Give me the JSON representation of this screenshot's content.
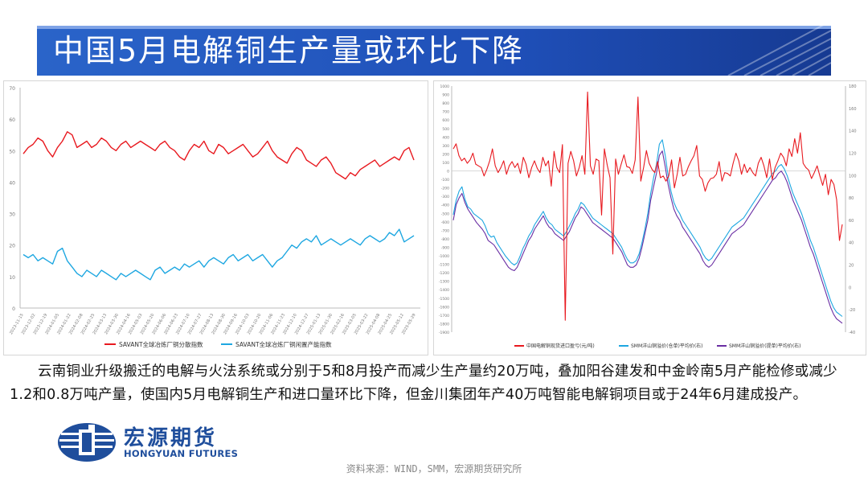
{
  "title": "中国5月电解铜生产量或环比下降",
  "body_text": "云南铜业升级搬迁的电解与火法系统或分别于5和8月投产而减少生产量约20万吨，叠加阳谷建发和中金岭南5月产能检修或减少1.2和0.8万吨产量，使国内5月电解铜生产和进口量环比下降，但金川集团年产40万吨智能电解铜项目或于24年6月建成投产。",
  "source": "资料来源：WIND，SMM，宏源期货研究所",
  "logo": {
    "cn": "宏源期货",
    "en": "HONGYUAN FUTURES"
  },
  "colors": {
    "title_bg": "#1f4fb8",
    "red": "#e8191f",
    "cyan": "#1ea7e1",
    "purple": "#6a2ea3"
  },
  "chart_data": [
    {
      "type": "line",
      "ylim": [
        0,
        70
      ],
      "yticks": [
        "0",
        "10",
        "20",
        "30",
        "40",
        "50",
        "60",
        "70"
      ],
      "x": [
        "2023-11-15",
        "2023-11-22",
        "2023-11-29",
        "2023-12-06",
        "2023-12-13",
        "2023-12-20",
        "2023-12-27",
        "2024-01-03",
        "2024-01-10",
        "2024-01-17",
        "2024-01-24",
        "2024-01-31",
        "2024-02-07",
        "2024-02-14",
        "2024-02-21",
        "2024-02-28",
        "2024-03-06",
        "2024-03-13",
        "2024-03-20",
        "2024-03-27",
        "2024-04-03",
        "2024-04-10",
        "2024-04-17",
        "2024-04-24",
        "2024-05-01",
        "2024-05-08",
        "2024-05-15",
        "2024-05-22",
        "2024-05-29",
        "2024-06-05",
        "2024-06-12",
        "2024-06-19",
        "2024-06-26",
        "2024-07-03",
        "2024-07-10",
        "2024-07-17",
        "2024-07-24",
        "2024-07-31",
        "2024-08-07",
        "2024-08-14",
        "2024-08-21",
        "2024-08-28",
        "2024-09-04",
        "2024-09-11",
        "2024-09-18",
        "2024-09-25",
        "2024-10-02",
        "2024-10-09",
        "2024-10-16",
        "2024-10-23",
        "2024-10-30",
        "2024-11-06",
        "2024-11-13",
        "2024-11-20",
        "2024-11-27",
        "2024-12-04",
        "2024-12-11",
        "2024-12-18",
        "2024-12-25",
        "2025-01-01",
        "2025-01-08",
        "2025-01-15",
        "2025-01-22",
        "2025-01-29",
        "2025-02-05",
        "2025-02-12",
        "2025-02-19",
        "2025-02-26",
        "2025-03-05",
        "2025-03-12",
        "2025-03-19",
        "2025-03-26",
        "2025-04-02",
        "2025-04-09",
        "2025-04-16",
        "2025-04-23",
        "2025-04-30",
        "2025-05-07",
        "2025-05-14",
        "2025-05-21",
        "2025-05-28"
      ],
      "xticks_shown": [
        "2023-11-15",
        "2023-12-02",
        "2023-12-19",
        "2024-01-05",
        "2024-01-22",
        "2024-02-08",
        "2024-02-25",
        "2024-03-13",
        "2024-03-30",
        "2024-04-16",
        "2024-05-03",
        "2024-05-20",
        "2024-06-06",
        "2024-06-23",
        "2024-07-10",
        "2024-07-27",
        "2024-08-13",
        "2024-08-30",
        "2024-09-16",
        "2024-10-03",
        "2024-10-20",
        "2024-11-06",
        "2024-11-23",
        "2024-12-10",
        "2024-12-27",
        "2025-01-13",
        "2025-01-30",
        "2025-02-16",
        "2025-03-05",
        "2025-03-22",
        "2025-04-08",
        "2025-04-25",
        "2025-05-12",
        "2025-05-29"
      ],
      "series": [
        {
          "name": "SAVANT全球冶炼厂铜分散指数",
          "color": "#e8191f",
          "values": [
            49,
            51,
            52,
            54,
            53,
            50,
            48,
            51,
            53,
            56,
            55,
            51,
            52,
            53,
            51,
            52,
            54,
            53,
            51,
            50,
            52,
            53,
            51,
            52,
            53,
            52,
            51,
            50,
            52,
            53,
            51,
            50,
            48,
            47,
            50,
            52,
            51,
            53,
            50,
            49,
            52,
            51,
            49,
            50,
            51,
            52,
            50,
            48,
            49,
            51,
            53,
            50,
            48,
            47,
            46,
            49,
            51,
            50,
            47,
            46,
            45,
            47,
            48,
            46,
            43,
            42,
            41,
            43,
            42,
            44,
            45,
            46,
            47,
            45,
            46,
            47,
            48,
            47,
            50,
            51,
            47
          ]
        },
        {
          "name": "SAVANT全球冶炼厂铜闲置产能指数",
          "color": "#1ea7e1",
          "values": [
            17,
            16,
            17,
            15,
            16,
            15,
            14,
            18,
            19,
            15,
            13,
            11,
            10,
            12,
            11,
            10,
            12,
            11,
            10,
            9,
            11,
            10,
            11,
            12,
            11,
            10,
            9,
            12,
            13,
            11,
            12,
            13,
            12,
            14,
            13,
            14,
            15,
            13,
            15,
            16,
            15,
            14,
            16,
            17,
            15,
            16,
            17,
            15,
            16,
            17,
            15,
            13,
            15,
            16,
            18,
            20,
            19,
            21,
            22,
            21,
            23,
            20,
            21,
            22,
            21,
            20,
            21,
            22,
            21,
            20,
            22,
            23,
            22,
            21,
            22,
            24,
            23,
            25,
            21,
            22,
            23
          ]
        }
      ]
    },
    {
      "type": "line",
      "ylim": [
        -1900,
        1000
      ],
      "yticks_left": [
        "-1900",
        "-1800",
        "-1700",
        "-1600",
        "-1500",
        "-1400",
        "-1300",
        "-1200",
        "-1100",
        "-1000",
        "-900",
        "-800",
        "-700",
        "-600",
        "-500",
        "-400",
        "-300",
        "-200",
        "-100",
        "0",
        "100",
        "200",
        "300",
        "400",
        "500",
        "600",
        "700",
        "800",
        "900",
        "1000"
      ],
      "ylim_right": [
        -40,
        180
      ],
      "yticks_right": [
        "-40",
        "-20",
        "0",
        "20",
        "40",
        "60",
        "80",
        "100",
        "120",
        "140",
        "160",
        "180"
      ],
      "series": [
        {
          "name": "中国电解铜现货进口盈亏(元/吨)",
          "color": "#e8191f",
          "axis": "left",
          "values": [
            260,
            320,
            180,
            120,
            150,
            90,
            130,
            210,
            80,
            60,
            40,
            -60,
            20,
            120,
            260,
            60,
            -20,
            40,
            120,
            -40,
            60,
            110,
            40,
            90,
            -30,
            160,
            80,
            -80,
            40,
            120,
            30,
            -20,
            160,
            60,
            120,
            -180,
            230,
            40,
            -20,
            310,
            -1760,
            90,
            230,
            120,
            -60,
            40,
            180,
            -40,
            930,
            60,
            -40,
            140,
            120,
            -520,
            260,
            70,
            -80,
            -980,
            140,
            -40,
            80,
            190,
            50,
            40,
            -30,
            130,
            870,
            -120,
            40,
            240,
            90,
            20,
            -20,
            110,
            -80,
            -60,
            -120,
            -60,
            130,
            -200,
            -40,
            160,
            -60,
            -40,
            50,
            120,
            180,
            300,
            -60,
            -100,
            -240,
            -140,
            -90,
            -80,
            -40,
            110,
            -120,
            -20,
            -30,
            -60,
            90,
            210,
            120,
            -40,
            80,
            -20,
            40,
            -20,
            -60,
            90,
            160,
            60,
            -80,
            140,
            -100,
            40,
            120,
            210,
            160,
            60,
            260,
            170,
            380,
            210,
            450,
            90,
            40,
            10,
            -90,
            -20,
            60,
            -60,
            -170,
            -40,
            -280,
            -100,
            -160,
            -340,
            -820,
            -630
          ]
        },
        {
          "name": "SMM洋山铜溢价(仓单)平均价(右)",
          "color": "#1ea7e1",
          "axis": "right",
          "values": [
            65,
            78,
            86,
            90,
            79,
            72,
            70,
            66,
            64,
            62,
            60,
            55,
            48,
            45,
            46,
            40,
            36,
            32,
            28,
            25,
            22,
            20,
            22,
            28,
            35,
            40,
            46,
            50,
            56,
            60,
            64,
            68,
            62,
            58,
            56,
            52,
            50,
            48,
            46,
            50,
            55,
            60,
            66,
            70,
            76,
            74,
            70,
            66,
            62,
            60,
            58,
            56,
            54,
            52,
            50,
            48,
            44,
            40,
            36,
            30,
            25,
            22,
            22,
            24,
            30,
            40,
            52,
            66,
            84,
            98,
            110,
            128,
            132,
            118,
            100,
            86,
            76,
            70,
            66,
            60,
            56,
            52,
            48,
            44,
            40,
            36,
            30,
            26,
            24,
            26,
            30,
            34,
            38,
            42,
            46,
            50,
            54,
            56,
            58,
            60,
            62,
            66,
            70,
            74,
            78,
            82,
            86,
            90,
            94,
            98,
            102,
            104,
            108,
            110,
            106,
            100,
            92,
            84,
            78,
            72,
            66,
            58,
            50,
            42,
            36,
            28,
            20,
            12,
            4,
            -4,
            -12,
            -18,
            -22,
            -24,
            -26
          ]
        },
        {
          "name": "SMM洋山铜溢价(提单)平均价(右)",
          "color": "#6a2ea3",
          "axis": "right",
          "values": [
            60,
            74,
            80,
            84,
            76,
            70,
            66,
            62,
            58,
            55,
            52,
            48,
            42,
            40,
            38,
            34,
            30,
            26,
            22,
            18,
            16,
            15,
            18,
            24,
            30,
            36,
            42,
            46,
            52,
            56,
            60,
            64,
            58,
            54,
            52,
            48,
            46,
            44,
            42,
            46,
            50,
            56,
            62,
            66,
            72,
            70,
            66,
            62,
            58,
            56,
            54,
            52,
            50,
            48,
            46,
            44,
            40,
            36,
            32,
            26,
            20,
            18,
            18,
            20,
            26,
            36,
            48,
            60,
            78,
            90,
            102,
            118,
            122,
            108,
            92,
            80,
            70,
            64,
            60,
            54,
            50,
            46,
            42,
            38,
            34,
            30,
            24,
            20,
            18,
            20,
            24,
            28,
            32,
            36,
            40,
            44,
            48,
            50,
            52,
            54,
            56,
            60,
            64,
            68,
            72,
            76,
            80,
            84,
            88,
            92,
            96,
            98,
            102,
            104,
            100,
            94,
            86,
            78,
            72,
            66,
            60,
            52,
            44,
            36,
            30,
            22,
            14,
            6,
            -2,
            -10,
            -18,
            -24,
            -28,
            -30,
            -32
          ]
        }
      ]
    }
  ]
}
